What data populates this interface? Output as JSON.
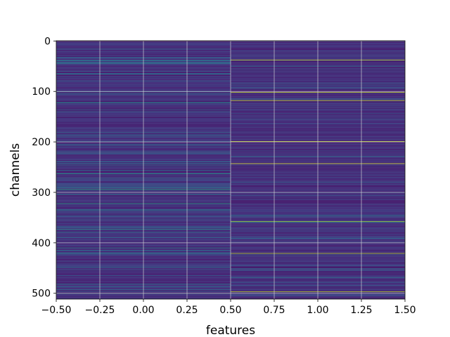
{
  "chart_data": {
    "type": "heatmap",
    "title": "",
    "xlabel": "features",
    "ylabel": "channels",
    "xlim": [
      -0.5,
      1.5
    ],
    "ylim": [
      511.5,
      -0.5
    ],
    "x_ticks": [
      -0.5,
      -0.25,
      0.0,
      0.25,
      0.5,
      0.75,
      1.0,
      1.25,
      1.5
    ],
    "x_tick_labels": [
      "−0.50",
      "−0.25",
      "0.00",
      "0.25",
      "0.50",
      "0.75",
      "1.00",
      "1.25",
      "1.50"
    ],
    "y_ticks": [
      0,
      100,
      200,
      300,
      400,
      500
    ],
    "y_tick_labels": [
      "0",
      "100",
      "200",
      "300",
      "400",
      "500"
    ],
    "grid": true,
    "colormap": "viridis",
    "columns": [
      0,
      1
    ],
    "rows": 512,
    "bright_bands": [
      {
        "column": 0,
        "channels": [
          122,
          263,
          294,
          322,
          373,
          410,
          500
        ]
      },
      {
        "column": 1,
        "channels": [
          38,
          102,
          118,
          199,
          243,
          358,
          421,
          497
        ]
      }
    ]
  }
}
